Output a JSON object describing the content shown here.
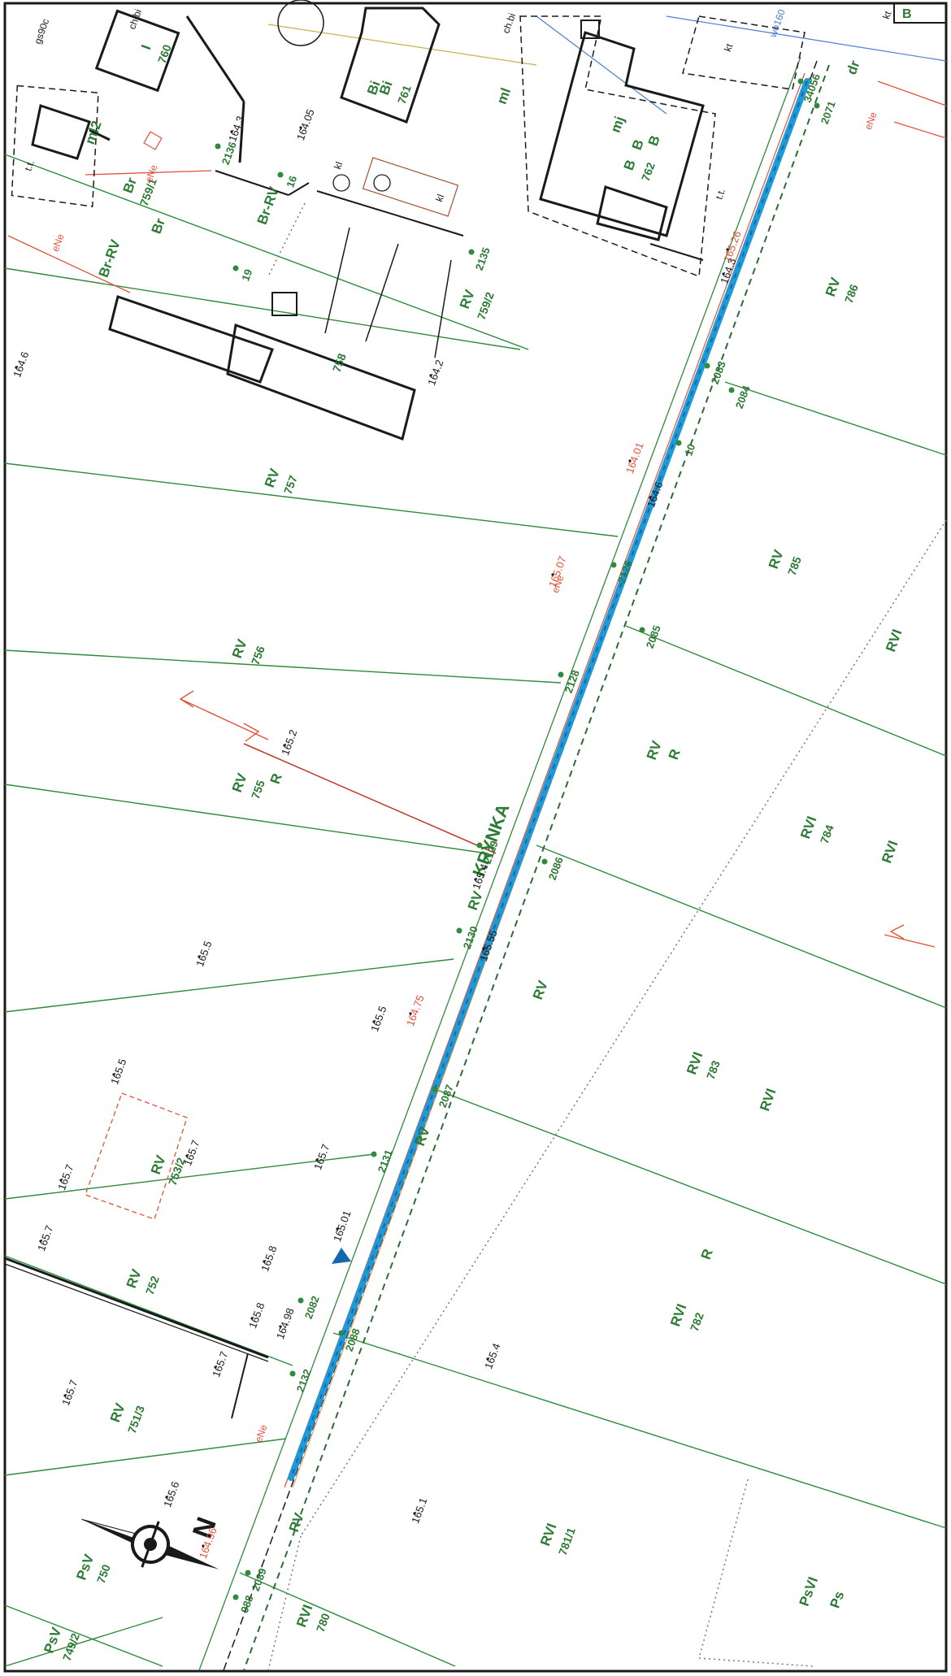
{
  "map": {
    "road_name": "KRYNKA",
    "colors": {
      "paper": "#ffffff",
      "ink": "#1a1a1a",
      "parcel_line": "#2f8a3a",
      "label_green": "#2c7a34",
      "utility_red": "#e0533a",
      "utility_orange": "#e88a3c",
      "utility_blue": "#4a7fd1",
      "pipeline": "#1f9ad6",
      "pipeline_dark": "#1468b0",
      "dashed_boundary": "#2e6b34"
    },
    "north_arrow": {
      "label": "N",
      "icon": "north-arrow-icon"
    },
    "parcels": [
      {
        "number": "749/2",
        "use": "PsV"
      },
      {
        "number": "750",
        "use": "PsV"
      },
      {
        "number": "751/3",
        "use": "RV"
      },
      {
        "number": "752",
        "use": "RV"
      },
      {
        "number": "753/2",
        "use": "RV"
      },
      {
        "number": "755",
        "use": "RV",
        "extra": "R"
      },
      {
        "number": "756",
        "use": "RV"
      },
      {
        "number": "757",
        "use": "RV"
      },
      {
        "number": "758",
        "use": ""
      },
      {
        "number": "759/1",
        "use": "Br"
      },
      {
        "number": "759/2",
        "use": "RV"
      },
      {
        "number": "760",
        "use": "I"
      },
      {
        "number": "761",
        "use": "Bi"
      },
      {
        "number": "762",
        "use": "B"
      },
      {
        "number": "780",
        "use": "RVI"
      },
      {
        "number": "781/1",
        "use": "RVI"
      },
      {
        "number": "782",
        "use": "RVI"
      },
      {
        "number": "783",
        "use": "RVI"
      },
      {
        "number": "784",
        "use": "RVI"
      },
      {
        "number": "785",
        "use": "RV"
      },
      {
        "number": "786",
        "use": "RV"
      }
    ],
    "land_use_labels": [
      "RV",
      "RV",
      "RV",
      "R",
      "RVI",
      "RVI",
      "R",
      "PsVI",
      "Ps",
      "RVI",
      "Br-RV",
      "Br-RV",
      "Br",
      "Bi",
      "B",
      "RV",
      "RV",
      "dr",
      "B",
      "ml",
      "ml2",
      "mj"
    ],
    "station_numbers": [
      "2136",
      "2135",
      "19",
      "16",
      "2071",
      "2084",
      "2085",
      "2086",
      "2087",
      "2088",
      "2089",
      "2129",
      "2128",
      "2130",
      "2131",
      "2132",
      "2082",
      "988",
      "10",
      "2083",
      "34056",
      "2126"
    ],
    "elevations": [
      "164.6",
      "164.3",
      "164.05",
      "164.2",
      "165.2",
      "165.5",
      "165.5",
      "165.5",
      "165.7",
      "165.7",
      "165.7",
      "165.7",
      "165.8",
      "165.8",
      "165.7",
      "165.7",
      "165.4",
      "165.6",
      "165.1",
      "165.55",
      "165.4",
      "164.75",
      "164.01",
      "164.6",
      "164.3",
      "165.01",
      "164.98",
      "165.07",
      "165.26",
      "164.96"
    ],
    "utility_codes": [
      "eNe",
      "eNe",
      "eNe",
      "eNe",
      "eNe",
      "kl",
      "kl",
      "wo160",
      "gs90c",
      "ch.bi",
      "ch.bi",
      "t.t.",
      "t.t.",
      "kt",
      "kt"
    ],
    "corner_letter": "B"
  }
}
